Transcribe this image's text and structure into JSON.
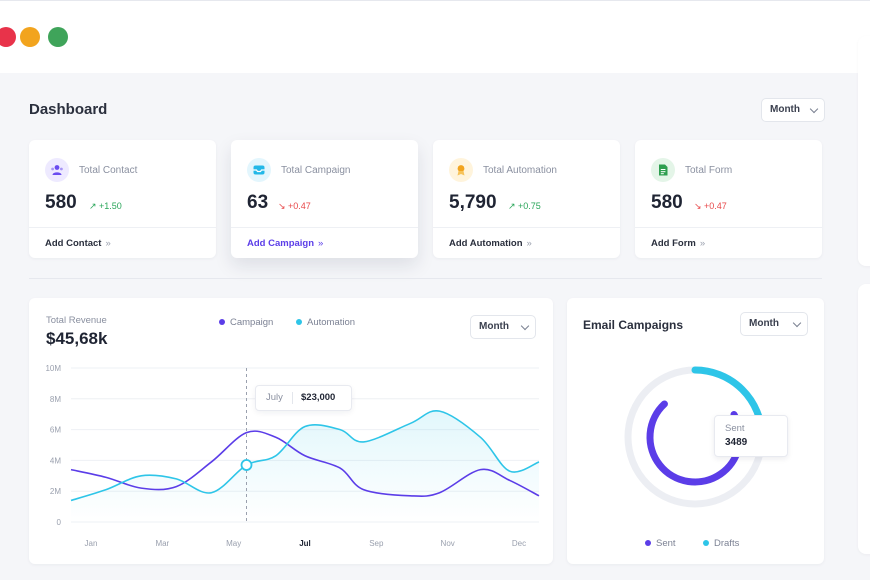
{
  "window": {
    "controls": [
      {
        "name": "close",
        "color": "#e8334a"
      },
      {
        "name": "minimize",
        "color": "#f2a41e"
      },
      {
        "name": "maximize",
        "color": "#3fa45a"
      }
    ]
  },
  "header": {
    "title": "Dashboard",
    "period_select": "Month"
  },
  "cards": [
    {
      "label": "Total Contact",
      "value": "580",
      "change": "↗ +1.50",
      "trend": "up",
      "action": "Add Contact",
      "arrow": "»",
      "icon": "users-icon",
      "icon_bg": "#eeeaff",
      "icon_color": "#6a4cf0"
    },
    {
      "label": "Total Campaign",
      "value": "63",
      "change": "↘ +0.47",
      "trend": "down",
      "action": "Add Campaign",
      "arrow": "»",
      "icon": "inbox-icon",
      "icon_bg": "#e3f6fd",
      "icon_color": "#22b8e8"
    },
    {
      "label": "Total Automation",
      "value": "5,790",
      "change": "↗ +0.75",
      "trend": "up",
      "action": "Add Automation",
      "arrow": "»",
      "icon": "badge-icon",
      "icon_bg": "#fff4dc",
      "icon_color": "#f2a41e"
    },
    {
      "label": "Total Form",
      "value": "580",
      "change": "↘ +0.47",
      "trend": "down",
      "action": "Add Form",
      "arrow": "»",
      "icon": "sheet-icon",
      "icon_bg": "#e4f5e8",
      "icon_color": "#2e9e4f"
    }
  ],
  "revenue": {
    "label": "Total Revenue",
    "value": "$45,68k",
    "period_select": "Month",
    "tooltip": {
      "month": "July",
      "value": "$23,000"
    }
  },
  "email": {
    "title": "Email Campaigns",
    "period_select": "Month",
    "tooltip_label": "Sent",
    "tooltip_value": "3489",
    "legend": [
      "Sent",
      "Drafts"
    ]
  },
  "colors": {
    "campaign": "#5b3de8",
    "automation": "#2ec5e8",
    "up": "#2aa65a",
    "down": "#e8484a",
    "accent": "#5b3de8"
  },
  "chart_data": [
    {
      "type": "line",
      "series": [
        {
          "name": "Campaign",
          "values": [
            3.4,
            2.9,
            2.2,
            2.3,
            3.9,
            5.8,
            5.5,
            4.3,
            3.5,
            2.1,
            1.7,
            1.9,
            3.4,
            2.7,
            1.7
          ]
        },
        {
          "name": "Automation",
          "values": [
            1.4,
            2.1,
            3.0,
            2.8,
            1.9,
            3.7,
            4.3,
            6.2,
            6.0,
            5.2,
            6.4,
            7.2,
            5.5,
            3.3,
            3.9
          ]
        }
      ],
      "x": [
        0,
        0.6,
        1.2,
        1.8,
        2.4,
        3.0,
        3.5,
        4.0,
        4.6,
        5.0,
        5.8,
        6.3,
        7.0,
        7.5,
        8.0
      ],
      "tick_labels": [
        "Jan",
        "Mar",
        "May",
        "Jul",
        "Sep",
        "Nov",
        "Dec"
      ],
      "tick_positions": [
        0,
        1,
        2,
        3,
        4,
        5,
        6
      ],
      "y_ticks": [
        "0",
        "2M",
        "4M",
        "6M",
        "8M",
        "10M"
      ],
      "ylim": [
        0,
        10
      ],
      "highlight": {
        "x": 3.0,
        "label": "Jul"
      },
      "grid": true
    },
    {
      "type": "pie",
      "categories": [
        "Sent",
        "Drafts"
      ],
      "values": [
        3489,
        1150
      ],
      "style": "double-ring"
    }
  ]
}
